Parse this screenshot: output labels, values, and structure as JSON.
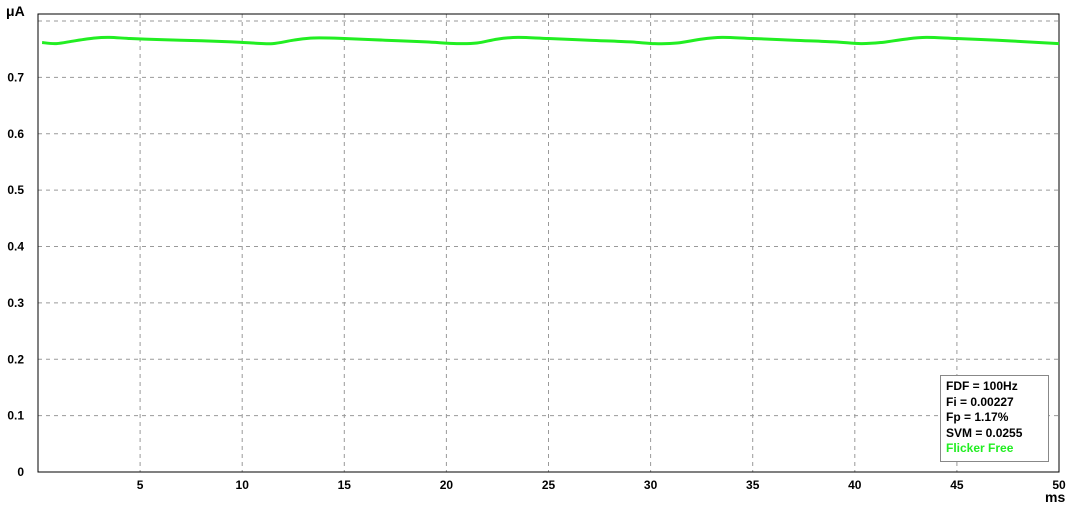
{
  "chart_data": {
    "type": "line",
    "y_unit": "μA",
    "x_unit": "ms",
    "xlim": [
      0,
      50
    ],
    "ylim": [
      0,
      0.8
    ],
    "x_ticks": [
      "5",
      "10",
      "15",
      "20",
      "25",
      "30",
      "35",
      "40",
      "45",
      "50"
    ],
    "y_ticks": [
      "0",
      "0.1",
      "0.2",
      "0.3",
      "0.4",
      "0.5",
      "0.6",
      "0.7"
    ],
    "grid": true,
    "series": [
      {
        "color": "#22ee22",
        "x": [
          0.2,
          0.9,
          1.8,
          2.8,
          3.5,
          4.5,
          6,
          8,
          9.5,
          10.5,
          11.5,
          12.5,
          13.5,
          15,
          17,
          19,
          20.5,
          21.5,
          22.5,
          23.5,
          25,
          27,
          29,
          30.2,
          31.3,
          32.5,
          33.5,
          35,
          37,
          39,
          40.3,
          41.3,
          42.5,
          43.5,
          45,
          47,
          49,
          50
        ],
        "y": [
          0.762,
          0.76,
          0.765,
          0.77,
          0.771,
          0.769,
          0.767,
          0.765,
          0.763,
          0.761,
          0.76,
          0.766,
          0.77,
          0.769,
          0.766,
          0.763,
          0.76,
          0.761,
          0.768,
          0.771,
          0.769,
          0.766,
          0.763,
          0.76,
          0.761,
          0.768,
          0.771,
          0.769,
          0.766,
          0.763,
          0.76,
          0.762,
          0.768,
          0.771,
          0.769,
          0.766,
          0.762,
          0.76
        ]
      }
    ]
  },
  "stats": {
    "fdf": "FDF = 100Hz",
    "fi": "Fi = 0.00227",
    "fp": "Fp = 1.17%",
    "svm": "SVM = 0.0255",
    "status": "Flicker Free"
  },
  "colors": {
    "line": "#22ee22",
    "grid": "#9a9a9a",
    "status": "#22ee22"
  }
}
